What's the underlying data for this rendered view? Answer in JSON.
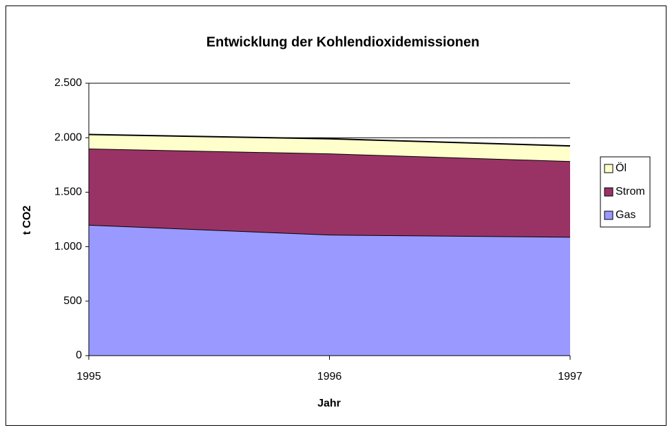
{
  "chart_data": {
    "type": "area",
    "stacked": true,
    "title": "Entwicklung der Kohlendioxidemissionen",
    "x_label": "Jahr",
    "y_label": "t CO2",
    "categories": [
      "1995",
      "1996",
      "1997"
    ],
    "series": [
      {
        "name": "Gas",
        "color": "#9999ff",
        "values": [
          1200,
          1110,
          1090
        ]
      },
      {
        "name": "Strom",
        "color": "#993366",
        "values": [
          700,
          745,
          695
        ]
      },
      {
        "name": "Öl",
        "color": "#ffffcc",
        "values": [
          130,
          135,
          140
        ]
      }
    ],
    "ylim": [
      0,
      2500
    ],
    "yticks": [
      0,
      {
        "value": 500,
        "label": "500"
      },
      {
        "value": 1000,
        "label": "1.000"
      },
      {
        "value": 1500,
        "label": "1.500"
      },
      {
        "value": 2000,
        "label": "2.000"
      },
      {
        "value": 2500,
        "label": "2.500"
      }
    ],
    "grid": true,
    "legend": "right"
  }
}
